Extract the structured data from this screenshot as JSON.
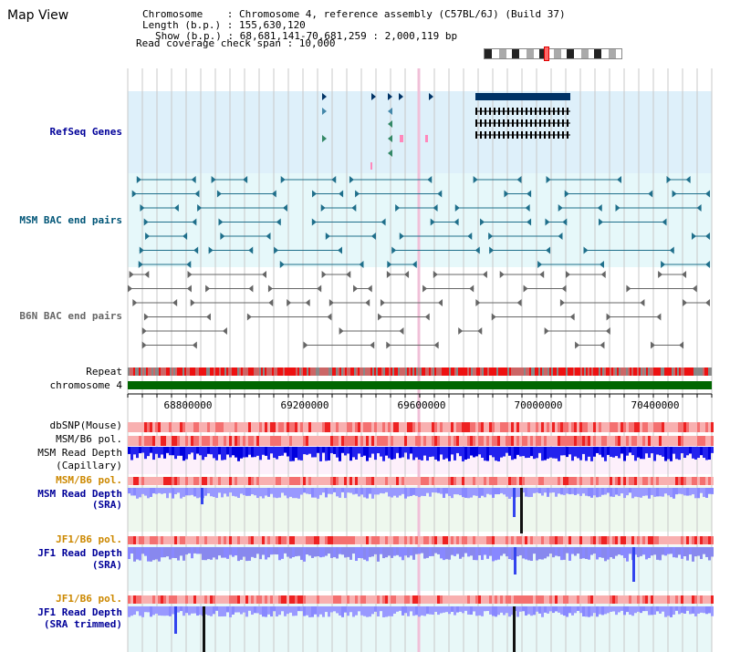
{
  "title": "Map View",
  "info": {
    "chromosome_line": "Chromosome    : Chromosome 4, reference assembly (C57BL/6J) (Build 37)",
    "length_line": "Length (b.p.) : 155,630,120",
    "show_line": "Show (b.p.) : 68,681,141-70,681,259 : 2,000,119 bp",
    "coverage_line": "Read coverage check span : 10,000"
  },
  "tracks": {
    "refseq": "RefSeq Genes",
    "msm_bac": "MSM BAC end pairs",
    "b6n_bac": "B6N BAC end pairs",
    "repeat": "Repeat",
    "chromosome": "chromosome 4",
    "dbsnp": "dbSNP(Mouse)",
    "msm_b6_pol_1": "MSM/B6 pol.",
    "msm_read_depth_cap_1": "MSM Read Depth",
    "msm_read_depth_cap_2": "(Capillary)",
    "msm_b6_pol_2": "MSM/B6 pol.",
    "msm_read_depth_sra_1": "MSM Read Depth",
    "msm_read_depth_sra_2": "(SRA)",
    "jf1_b6_pol_1": "JF1/B6 pol.",
    "jf1_read_depth_sra_1": "JF1 Read Depth",
    "jf1_read_depth_sra_2": "(SRA)",
    "jf1_b6_pol_2": "JF1/B6 pol.",
    "jf1_read_depth_trim_1": "JF1 Read Depth",
    "jf1_read_depth_trim_2": "(SRA trimmed)"
  },
  "axis_ticks": [
    "68800000",
    "69200000",
    "69600000",
    "70000000",
    "70400000"
  ],
  "colors": {
    "refseq_bg": "#def0fa",
    "msm_bg": "#e6f8fa",
    "grid": "#c8c8c8",
    "gene": "#003366",
    "msm_pair": "#1f6f8b",
    "b6n_pair": "#666666",
    "chrom_bar": "#006600",
    "label_blue": "#000099",
    "label_teal": "#005577",
    "label_orange": "#cc8800",
    "depth_blue": "#0000dd",
    "depth_light": "#8888ff"
  }
}
